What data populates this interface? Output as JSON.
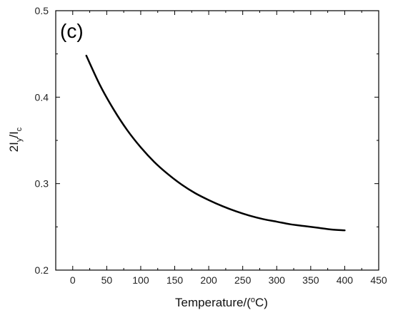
{
  "chart_data": {
    "type": "line",
    "panel_label": "(c)",
    "xlabel": {
      "main": "Temperature/(",
      "sup": "o",
      "tail": "C)"
    },
    "ylabel": {
      "lead": "2I",
      "sub1": "y",
      "mid": "/I",
      "sub2": "c"
    },
    "xlim": [
      -25,
      450
    ],
    "ylim": [
      0.2,
      0.5
    ],
    "xticks": [
      0,
      50,
      100,
      150,
      200,
      250,
      300,
      350,
      400,
      450
    ],
    "xtick_labels": [
      "0",
      "50",
      "100",
      "150",
      "200",
      "250",
      "300",
      "350",
      "400",
      "450"
    ],
    "yticks": [
      0.2,
      0.3,
      0.4,
      0.5
    ],
    "ytick_labels": [
      "0.2",
      "0.3",
      "0.4",
      "0.5"
    ],
    "grid": false,
    "series": [
      {
        "color": "#000000",
        "x": [
          20,
          40,
          60,
          80,
          100,
          120,
          140,
          160,
          180,
          200,
          220,
          240,
          260,
          280,
          300,
          320,
          340,
          360,
          380,
          400
        ],
        "y": [
          0.448,
          0.414,
          0.386,
          0.362,
          0.342,
          0.325,
          0.311,
          0.299,
          0.289,
          0.281,
          0.274,
          0.268,
          0.263,
          0.259,
          0.256,
          0.253,
          0.251,
          0.249,
          0.247,
          0.246
        ]
      }
    ]
  }
}
